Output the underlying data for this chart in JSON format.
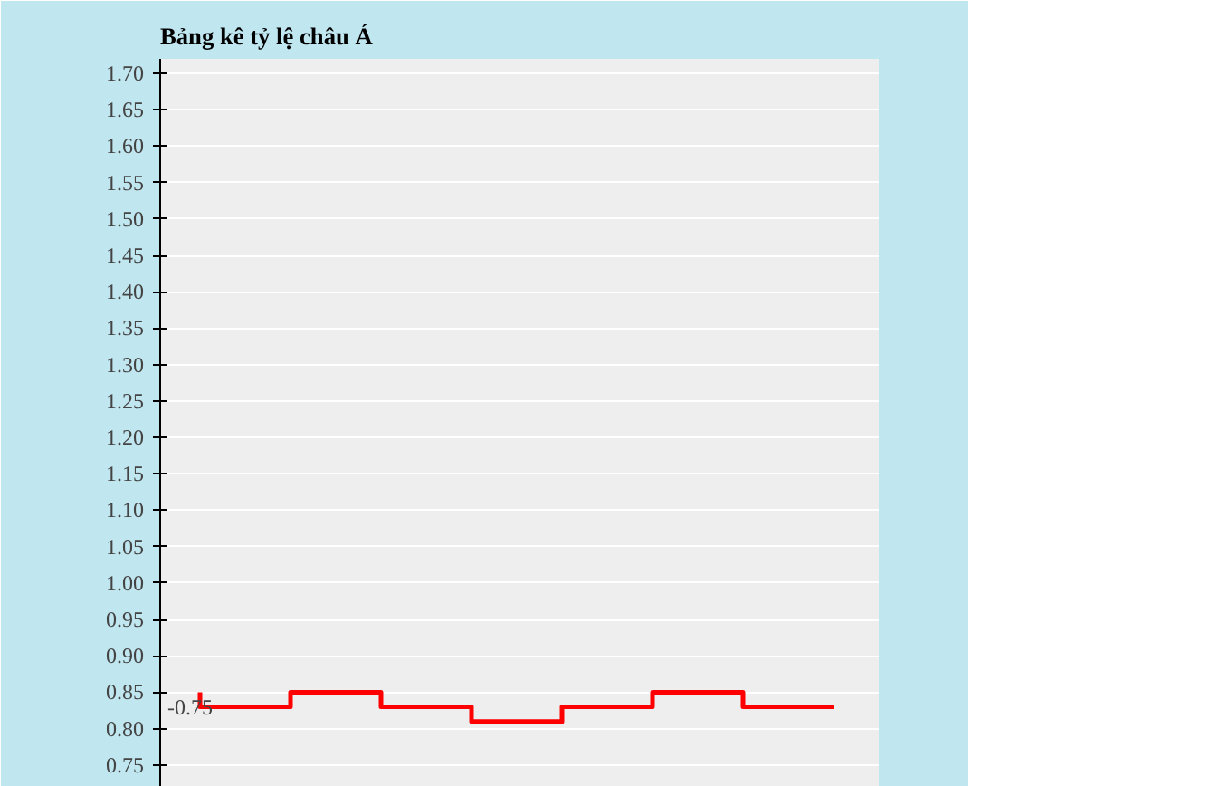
{
  "chart_data": {
    "type": "step",
    "title": "Bảng kê tỷ lệ châu Á",
    "categories": [
      null,
      null,
      null,
      null,
      null,
      null,
      null,
      null
    ],
    "series": [
      {
        "color": "#ff0000",
        "values": [
          0.85,
          0.83,
          0.85,
          0.83,
          0.81,
          0.83,
          0.85,
          0.83
        ]
      }
    ],
    "ylim": [
      0.72,
      1.72
    ],
    "yticks": [
      {
        "value": 0.75,
        "label": "0.75"
      },
      {
        "value": 0.8,
        "label": "0.80"
      },
      {
        "value": 0.85,
        "label": "0.85"
      },
      {
        "value": 0.9,
        "label": "0.90"
      },
      {
        "value": 0.95,
        "label": "0.95"
      },
      {
        "value": 1.0,
        "label": "1.00"
      },
      {
        "value": 1.05,
        "label": "1.05"
      },
      {
        "value": 1.1,
        "label": "1.10"
      },
      {
        "value": 1.15,
        "label": "1.15"
      },
      {
        "value": 1.2,
        "label": "1.20"
      },
      {
        "value": 1.25,
        "label": "1.25"
      },
      {
        "value": 1.3,
        "label": "1.30"
      },
      {
        "value": 1.35,
        "label": "1.35"
      },
      {
        "value": 1.4,
        "label": "1.40"
      },
      {
        "value": 1.45,
        "label": "1.45"
      },
      {
        "value": 1.5,
        "label": "1.50"
      },
      {
        "value": 1.55,
        "label": "1.55"
      },
      {
        "value": 1.6,
        "label": "1.60"
      },
      {
        "value": 1.65,
        "label": "1.65"
      },
      {
        "value": 1.7,
        "label": "1.70"
      }
    ],
    "annotations": [
      "-0.75"
    ],
    "grid": "y",
    "marker": "none",
    "line_style": "solid",
    "tick_labels": "y"
  }
}
